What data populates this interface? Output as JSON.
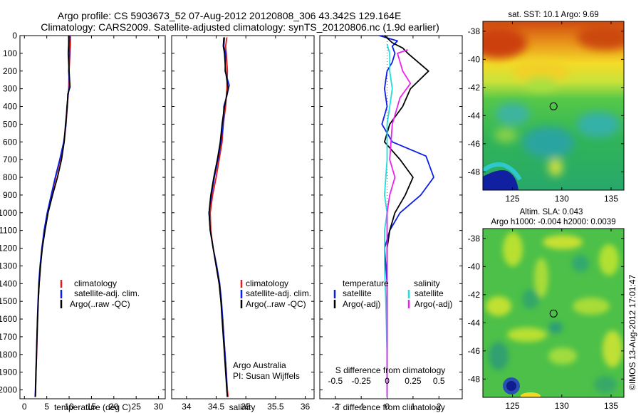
{
  "title": {
    "line1": "Argo profile: CS 5903673_52 07-Aug-2012 20120808_306 43.342S 129.164E",
    "line2": "Climatology: CARS2009. Satellite-adjusted climatology: synTS_20120806.nc (1.9d earlier)"
  },
  "colors": {
    "climatology": "#e41a1c",
    "satellite": "#0a1ee6",
    "argo": "#000000",
    "sal_satellite": "#22dddd",
    "sal_argo": "#ee22ee"
  },
  "depth_axis": {
    "ylim": [
      0,
      2050
    ],
    "ticks": [
      0,
      100,
      200,
      300,
      400,
      500,
      600,
      700,
      800,
      900,
      1000,
      1100,
      1200,
      1300,
      1400,
      1500,
      1600,
      1700,
      1800,
      1900,
      2000
    ]
  },
  "chart_data": [
    {
      "type": "line",
      "xlabel": "temperature (deg C)",
      "xlim": [
        -1,
        31.5
      ],
      "xticks": [
        0,
        5,
        10,
        15,
        20,
        25,
        30
      ],
      "ylim": [
        0,
        2050
      ],
      "legend": [
        "climatology",
        "satellite-adj. clim.",
        "Argo(..raw -QC)"
      ],
      "series": [
        {
          "name": "climatology",
          "color": "#e41a1c",
          "points": [
            [
              10.3,
              0
            ],
            [
              10.3,
              50
            ],
            [
              10.2,
              100
            ],
            [
              10.0,
              200
            ],
            [
              9.9,
              300
            ],
            [
              9.6,
              400
            ],
            [
              9.3,
              500
            ],
            [
              8.9,
              600
            ],
            [
              8.0,
              700
            ],
            [
              7.0,
              800
            ],
            [
              6.1,
              900
            ],
            [
              5.2,
              1000
            ],
            [
              4.5,
              1100
            ],
            [
              3.9,
              1200
            ],
            [
              3.6,
              1300
            ],
            [
              3.3,
              1400
            ],
            [
              3.1,
              1500
            ],
            [
              2.95,
              1600
            ],
            [
              2.85,
              1700
            ],
            [
              2.75,
              1800
            ],
            [
              2.6,
              1900
            ],
            [
              2.5,
              2000
            ],
            [
              2.45,
              2040
            ]
          ]
        },
        {
          "name": "satellite-adj. clim.",
          "color": "#0a1ee6",
          "points": [
            [
              10.1,
              0
            ],
            [
              10.0,
              50
            ],
            [
              10.1,
              100
            ],
            [
              9.9,
              200
            ],
            [
              10.1,
              280
            ],
            [
              9.8,
              330
            ],
            [
              9.5,
              400
            ],
            [
              9.3,
              500
            ],
            [
              8.8,
              600
            ],
            [
              7.9,
              700
            ],
            [
              6.9,
              800
            ],
            [
              6.0,
              900
            ],
            [
              5.1,
              1000
            ],
            [
              4.4,
              1100
            ],
            [
              3.9,
              1200
            ],
            [
              3.5,
              1300
            ],
            [
              3.2,
              1400
            ],
            [
              3.05,
              1500
            ],
            [
              2.9,
              1600
            ],
            [
              2.8,
              1700
            ],
            [
              2.7,
              1800
            ],
            [
              2.55,
              1900
            ],
            [
              2.45,
              2000
            ],
            [
              2.4,
              2040
            ]
          ]
        },
        {
          "name": "Argo(..raw -QC)",
          "color": "#000000",
          "points": [
            [
              9.9,
              0
            ],
            [
              9.9,
              50
            ],
            [
              9.8,
              100
            ],
            [
              10.0,
              200
            ],
            [
              10.2,
              290
            ],
            [
              9.7,
              330
            ],
            [
              9.6,
              400
            ],
            [
              9.2,
              500
            ],
            [
              8.9,
              600
            ],
            [
              8.3,
              700
            ],
            [
              7.4,
              800
            ],
            [
              6.3,
              900
            ],
            [
              5.3,
              1000
            ],
            [
              4.6,
              1100
            ],
            [
              4.0,
              1200
            ],
            [
              3.6,
              1300
            ],
            [
              3.3,
              1400
            ],
            [
              3.1,
              1500
            ],
            [
              2.95,
              1600
            ],
            [
              2.8,
              1700
            ],
            [
              2.7,
              1800
            ],
            [
              2.6,
              1900
            ],
            [
              2.5,
              2000
            ],
            [
              2.45,
              2040
            ]
          ]
        }
      ]
    },
    {
      "type": "line",
      "xlabel": "salinity",
      "xlim": [
        33.75,
        36.15
      ],
      "xticks": [
        34,
        34.5,
        35,
        35.5,
        36
      ],
      "ylim": [
        0,
        2050
      ],
      "legend": [
        "climatology",
        "satellite-adj. clim.",
        "Argo(..raw -QC)"
      ],
      "annotation": [
        "Argo Australia",
        "PI: Susan Wijffels"
      ],
      "series": [
        {
          "name": "climatology",
          "color": "#e41a1c",
          "points": [
            [
              34.68,
              10
            ],
            [
              34.66,
              60
            ],
            [
              34.67,
              100
            ],
            [
              34.69,
              200
            ],
            [
              34.68,
              300
            ],
            [
              34.66,
              400
            ],
            [
              34.62,
              500
            ],
            [
              34.6,
              600
            ],
            [
              34.55,
              700
            ],
            [
              34.5,
              800
            ],
            [
              34.44,
              900
            ],
            [
              34.4,
              1000
            ],
            [
              34.41,
              1100
            ],
            [
              34.45,
              1200
            ],
            [
              34.5,
              1300
            ],
            [
              34.55,
              1400
            ],
            [
              34.58,
              1500
            ],
            [
              34.61,
              1600
            ],
            [
              34.63,
              1700
            ],
            [
              34.65,
              1800
            ],
            [
              34.67,
              1900
            ],
            [
              34.69,
              2000
            ],
            [
              34.7,
              2040
            ]
          ]
        },
        {
          "name": "satellite-adj. clim.",
          "color": "#0a1ee6",
          "points": [
            [
              34.64,
              10
            ],
            [
              34.63,
              60
            ],
            [
              34.66,
              100
            ],
            [
              34.65,
              200
            ],
            [
              34.72,
              280
            ],
            [
              34.68,
              340
            ],
            [
              34.63,
              400
            ],
            [
              34.62,
              500
            ],
            [
              34.58,
              600
            ],
            [
              34.53,
              700
            ],
            [
              34.47,
              800
            ],
            [
              34.42,
              900
            ],
            [
              34.38,
              1000
            ],
            [
              34.4,
              1100
            ],
            [
              34.45,
              1200
            ],
            [
              34.51,
              1300
            ],
            [
              34.56,
              1400
            ],
            [
              34.59,
              1500
            ],
            [
              34.61,
              1600
            ],
            [
              34.63,
              1700
            ],
            [
              34.65,
              1800
            ],
            [
              34.67,
              1900
            ],
            [
              34.68,
              2000
            ],
            [
              34.69,
              2040
            ]
          ]
        },
        {
          "name": "Argo(..raw -QC)",
          "color": "#000000",
          "points": [
            [
              34.63,
              10
            ],
            [
              34.62,
              60
            ],
            [
              34.64,
              100
            ],
            [
              34.66,
              200
            ],
            [
              34.7,
              300
            ],
            [
              34.67,
              350
            ],
            [
              34.64,
              400
            ],
            [
              34.6,
              500
            ],
            [
              34.57,
              600
            ],
            [
              34.52,
              700
            ],
            [
              34.46,
              800
            ],
            [
              34.41,
              900
            ],
            [
              34.38,
              1000
            ],
            [
              34.4,
              1100
            ],
            [
              34.45,
              1200
            ],
            [
              34.5,
              1300
            ],
            [
              34.55,
              1400
            ],
            [
              34.58,
              1500
            ],
            [
              34.6,
              1600
            ],
            [
              34.62,
              1700
            ],
            [
              34.64,
              1800
            ],
            [
              34.66,
              1900
            ],
            [
              34.68,
              2000
            ],
            [
              34.69,
              2040
            ]
          ]
        }
      ]
    },
    {
      "type": "line",
      "xlabel": "T difference from climatology",
      "xlim": [
        -2.6,
        2.9
      ],
      "xticks": [
        -2,
        -1,
        0,
        1,
        2
      ],
      "top_axis_label": "S difference from climatology",
      "top_ticks": [
        "-0.5",
        "-0.25",
        "0",
        "0.25",
        "0.5"
      ],
      "top_tick_x": [
        -2,
        -1,
        0,
        1,
        2
      ],
      "ylim": [
        0,
        2050
      ],
      "legend_left_title": "temperature",
      "legend_right_title": "salinity",
      "legend_left": [
        "satellite",
        "Argo(-adj)"
      ],
      "legend_right": [
        "satellite",
        "Argo(-adj)"
      ],
      "series": [
        {
          "name": "T satellite",
          "color": "#0a1ee6",
          "points": [
            [
              -0.3,
              0
            ],
            [
              0.4,
              30
            ],
            [
              0.2,
              60
            ],
            [
              0.3,
              100
            ],
            [
              0.2,
              150
            ],
            [
              0.0,
              200
            ],
            [
              -0.1,
              300
            ],
            [
              0.0,
              400
            ],
            [
              -0.2,
              500
            ],
            [
              0.2,
              600
            ],
            [
              1.5,
              680
            ],
            [
              1.8,
              800
            ],
            [
              1.3,
              900
            ],
            [
              0.5,
              1000
            ],
            [
              0.1,
              1100
            ],
            [
              -0.1,
              1200
            ],
            [
              0.0,
              1400
            ],
            [
              0.0,
              1700
            ],
            [
              0.0,
              2040
            ]
          ]
        },
        {
          "name": "T Argo(-adj)",
          "color": "#000000",
          "points": [
            [
              -0.1,
              0
            ],
            [
              0.2,
              40
            ],
            [
              0.6,
              70
            ],
            [
              0.8,
              100
            ],
            [
              1.6,
              200
            ],
            [
              0.9,
              300
            ],
            [
              0.6,
              400
            ],
            [
              0.1,
              500
            ],
            [
              -0.1,
              600
            ],
            [
              0.5,
              700
            ],
            [
              1.0,
              800
            ],
            [
              0.7,
              900
            ],
            [
              0.3,
              1000
            ],
            [
              0.1,
              1100
            ],
            [
              0.0,
              1200
            ],
            [
              0.0,
              1500
            ],
            [
              0.0,
              2040
            ]
          ]
        },
        {
          "name": "S satellite",
          "color": "#22dddd",
          "points": [
            [
              0.0,
              50
            ],
            [
              0.1,
              100
            ],
            [
              0.1,
              200
            ],
            [
              0.2,
              300
            ],
            [
              0.1,
              400
            ],
            [
              0.0,
              500
            ],
            [
              0.0,
              700
            ],
            [
              -0.1,
              900
            ],
            [
              0.0,
              1000
            ],
            [
              -0.1,
              1100
            ],
            [
              -0.1,
              1300
            ],
            [
              -0.05,
              1500
            ],
            [
              0.0,
              1800
            ],
            [
              0.0,
              2040
            ]
          ]
        },
        {
          "name": "S Argo(-adj)",
          "color": "#ee22ee",
          "points": [
            [
              0.8,
              80
            ],
            [
              0.4,
              100
            ],
            [
              0.6,
              200
            ],
            [
              0.9,
              270
            ],
            [
              0.5,
              350
            ],
            [
              0.2,
              500
            ],
            [
              0.1,
              700
            ],
            [
              0.3,
              800
            ],
            [
              0.1,
              900
            ],
            [
              0.0,
              1000
            ],
            [
              0.0,
              1200
            ],
            [
              0.0,
              2040
            ]
          ]
        }
      ]
    },
    {
      "type": "heatmap",
      "title": "sat. SST: 10.1 Argo: 9.69",
      "xlim": [
        122,
        136.3
      ],
      "ylim": [
        -49.3,
        -37.3
      ],
      "xticks": [
        125,
        130,
        135
      ],
      "yticks": [
        -38,
        -40,
        -42,
        -44,
        -46,
        -48
      ],
      "marker": {
        "lon": 129.164,
        "lat": -43.342
      }
    },
    {
      "type": "heatmap",
      "title": "Altim. SLA: 0.043",
      "subtitle": "Argo h1000: -0.004 h2000: 0.0039",
      "xlim": [
        122,
        136.3
      ],
      "ylim": [
        -49.3,
        -37.3
      ],
      "xticks": [
        125,
        130,
        135
      ],
      "yticks": [
        -38,
        -40,
        -42,
        -44,
        -46,
        -48
      ],
      "marker": {
        "lon": 129.164,
        "lat": -43.342
      }
    }
  ],
  "footer": {
    "stamp": "©IMOS 13-Aug-2012 17:01:47"
  }
}
